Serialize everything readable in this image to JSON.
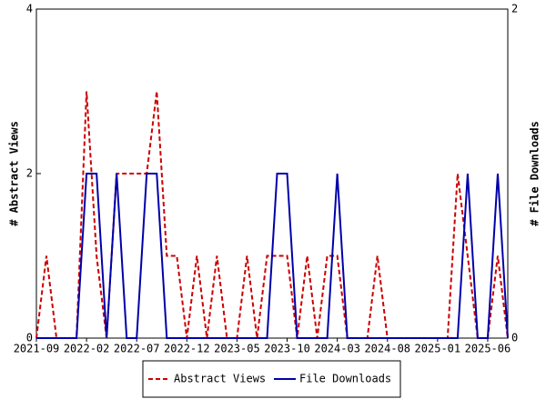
{
  "chart_data": {
    "type": "line",
    "categories": [
      "2021-09",
      null,
      null,
      null,
      null,
      "2022-02",
      null,
      null,
      null,
      null,
      "2022-07",
      null,
      null,
      null,
      null,
      "2022-12",
      null,
      null,
      null,
      null,
      "2023-05",
      null,
      null,
      null,
      null,
      "2023-10",
      null,
      null,
      null,
      null,
      "2024-03",
      null,
      null,
      null,
      null,
      "2024-08",
      null,
      null,
      null,
      null,
      "2025-01",
      null,
      null,
      null,
      null,
      "2025-06",
      null,
      null
    ],
    "series": [
      {
        "name": "Abstract Views",
        "color": "#cc0000",
        "dash": true,
        "values": [
          0,
          1,
          0,
          0,
          0,
          3,
          1,
          0,
          2,
          2,
          2,
          2,
          3,
          1,
          1,
          0,
          1,
          0,
          1,
          0,
          0,
          1,
          0,
          1,
          1,
          1,
          0,
          1,
          0,
          1,
          1,
          0,
          0,
          0,
          1,
          0,
          0,
          0,
          0,
          0,
          0,
          0,
          2,
          1,
          0,
          0,
          1,
          0
        ]
      },
      {
        "name": "File Downloads",
        "color": "#0000aa",
        "axis": "y2",
        "values": [
          0,
          0,
          0,
          0,
          0,
          1,
          1,
          0,
          1,
          0,
          0,
          1,
          1,
          0,
          0,
          0,
          0,
          0,
          0,
          0,
          0,
          0,
          0,
          0,
          1,
          1,
          0,
          0,
          0,
          0,
          1,
          0,
          0,
          0,
          0,
          0,
          0,
          0,
          0,
          0,
          0,
          0,
          0,
          1,
          0,
          0,
          1,
          0
        ]
      }
    ],
    "y_label": "# Abstract Views",
    "y2_label": "# File Downloads",
    "ylim": [
      0,
      4
    ],
    "yticks": [
      0,
      2,
      4
    ],
    "y2lim": [
      0,
      2
    ],
    "y2ticks": [
      0,
      2
    ]
  }
}
